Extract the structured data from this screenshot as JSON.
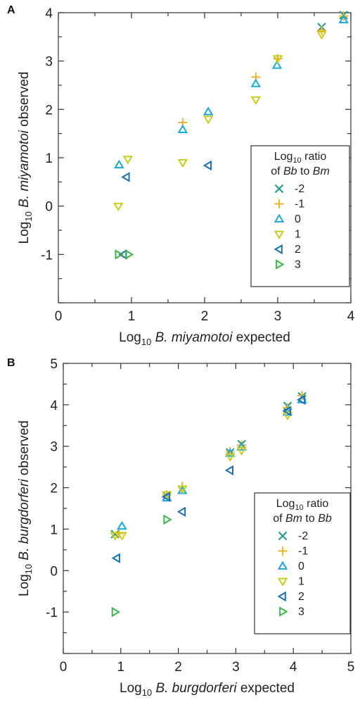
{
  "series_styles": [
    {
      "key": "-2",
      "marker": "x",
      "color": "#1a9a86"
    },
    {
      "key": "-1",
      "marker": "plus",
      "color": "#f0b429"
    },
    {
      "key": "0",
      "marker": "triangle-up",
      "color": "#1aa8d8"
    },
    {
      "key": "1",
      "marker": "triangle-down",
      "color": "#c8cc1e"
    },
    {
      "key": "2",
      "marker": "triangle-left",
      "color": "#1c6fb6"
    },
    {
      "key": "3",
      "marker": "triangle-right",
      "color": "#3cb54a"
    }
  ],
  "chart_data": [
    {
      "panel_label": "A",
      "type": "scatter",
      "xlabel": {
        "prefix": "Log",
        "sub": "10",
        "species": "B. miyamotoi",
        "suffix": "expected"
      },
      "ylabel": {
        "prefix": "Log",
        "sub": "10",
        "species": "B. miyamotoi",
        "suffix": "observed"
      },
      "xlim": [
        0,
        4
      ],
      "ylim": [
        -2,
        4
      ],
      "xticks": [
        0,
        1,
        2,
        3,
        4
      ],
      "yticks": [
        -1,
        0,
        1,
        2,
        3,
        4
      ],
      "legend": {
        "position": "right",
        "title_line1_prefix": "Log",
        "title_line1_sub": "10",
        "title_line1_suffix": "ratio",
        "title_line2_prefix": "of",
        "title_line2_a": "Bb",
        "title_line2_mid": "to",
        "title_line2_b": "Bm"
      },
      "series": [
        {
          "name": "-2",
          "points": [
            [
              3.6,
              3.7
            ],
            [
              3.9,
              3.95
            ]
          ]
        },
        {
          "name": "-1",
          "points": [
            [
              1.7,
              1.73
            ],
            [
              2.7,
              2.67
            ],
            [
              3.0,
              3.05
            ],
            [
              3.6,
              3.63
            ],
            [
              3.9,
              3.93
            ]
          ]
        },
        {
          "name": "0",
          "points": [
            [
              0.83,
              0.85
            ],
            [
              1.7,
              1.58
            ],
            [
              2.05,
              1.95
            ],
            [
              2.7,
              2.53
            ],
            [
              2.99,
              2.91
            ],
            [
              3.9,
              3.85
            ]
          ]
        },
        {
          "name": "1",
          "points": [
            [
              0.82,
              0.0
            ],
            [
              0.95,
              0.97
            ],
            [
              1.7,
              0.9
            ],
            [
              2.05,
              1.8
            ],
            [
              2.7,
              2.2
            ],
            [
              3.0,
              3.05
            ],
            [
              3.6,
              3.55
            ]
          ]
        },
        {
          "name": "2",
          "points": [
            [
              0.93,
              0.6
            ],
            [
              2.05,
              0.84
            ],
            [
              0.89,
              -1.0
            ]
          ]
        },
        {
          "name": "3",
          "points": [
            [
              0.82,
              -1.0
            ],
            [
              0.96,
              -1.0
            ]
          ]
        }
      ]
    },
    {
      "panel_label": "B",
      "type": "scatter",
      "xlabel": {
        "prefix": "Log",
        "sub": "10",
        "species": "B. burgdorferi",
        "suffix": "expected"
      },
      "ylabel": {
        "prefix": "Log",
        "sub": "10",
        "species": "B. burgdorferi",
        "suffix": "observed"
      },
      "xlim": [
        0,
        5
      ],
      "ylim": [
        -2,
        5
      ],
      "xticks": [
        0,
        1,
        2,
        3,
        4,
        5
      ],
      "yticks": [
        -1,
        0,
        1,
        2,
        3,
        4,
        5
      ],
      "legend": {
        "position": "right",
        "title_line1_prefix": "Log",
        "title_line1_sub": "10",
        "title_line1_suffix": "ratio",
        "title_line2_prefix": "of",
        "title_line2_a": "Bm",
        "title_line2_mid": "to",
        "title_line2_b": "Bb"
      },
      "series": [
        {
          "name": "-2",
          "points": [
            [
              0.9,
              0.88
            ],
            [
              1.8,
              1.8
            ],
            [
              2.9,
              2.85
            ],
            [
              3.1,
              3.05
            ],
            [
              3.9,
              3.97
            ],
            [
              4.15,
              4.2
            ]
          ]
        },
        {
          "name": "-1",
          "points": [
            [
              0.97,
              0.9
            ],
            [
              1.8,
              1.83
            ],
            [
              2.07,
              2.03
            ],
            [
              2.9,
              2.87
            ],
            [
              3.1,
              3.03
            ],
            [
              3.9,
              3.93
            ],
            [
              4.15,
              4.22
            ]
          ]
        },
        {
          "name": "0",
          "points": [
            [
              1.02,
              1.07
            ],
            [
              1.8,
              1.75
            ],
            [
              2.07,
              1.93
            ],
            [
              2.9,
              2.83
            ],
            [
              3.1,
              2.98
            ],
            [
              3.9,
              3.82
            ],
            [
              4.15,
              4.12
            ]
          ]
        },
        {
          "name": "1",
          "points": [
            [
              0.9,
              0.85
            ],
            [
              1.02,
              0.85
            ],
            [
              1.8,
              1.83
            ],
            [
              2.07,
              1.97
            ],
            [
              2.9,
              2.75
            ],
            [
              3.1,
              2.9
            ],
            [
              3.9,
              3.75
            ]
          ]
        },
        {
          "name": "2",
          "points": [
            [
              0.93,
              0.3
            ],
            [
              1.8,
              1.78
            ],
            [
              2.07,
              1.42
            ],
            [
              2.9,
              2.42
            ],
            [
              3.9,
              3.85
            ],
            [
              4.15,
              4.12
            ]
          ]
        },
        {
          "name": "3",
          "points": [
            [
              1.8,
              1.23
            ],
            [
              0.9,
              -1.0
            ]
          ]
        }
      ]
    }
  ]
}
